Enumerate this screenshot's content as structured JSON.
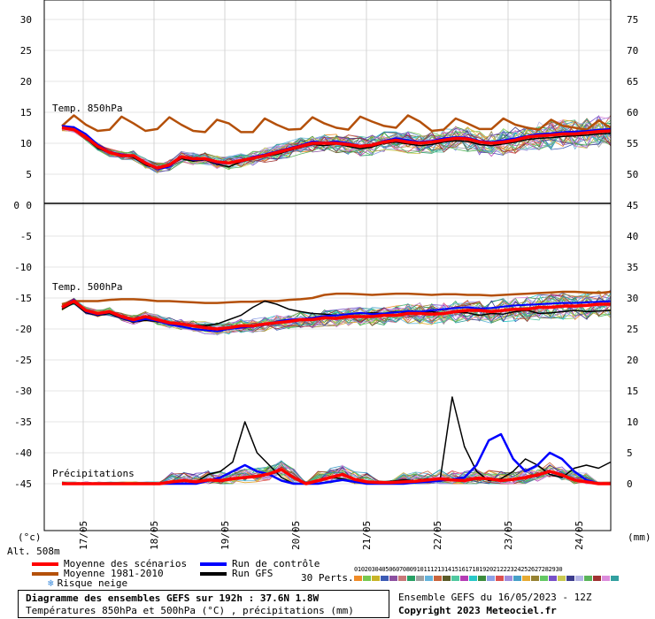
{
  "chart_data": {
    "type": "line",
    "title": "Diagramme des ensembles GEFS sur 192h : 37.6N 1.8W",
    "subtitle": "Températures 850hPa et 500hPa (°C) , précipitations (mm)",
    "x_dates": [
      "17/05",
      "18/05",
      "19/05",
      "20/05",
      "21/05",
      "22/05",
      "23/05",
      "24/05"
    ],
    "y_left_ticks": [
      30,
      25,
      20,
      15,
      10,
      5,
      0,
      -5,
      -10,
      -15,
      -20,
      -25,
      -30,
      -35,
      -40,
      -45
    ],
    "y_right_ticks_top": [
      75,
      70,
      65,
      60,
      55,
      50
    ],
    "y_right_ticks_bottom": [
      45,
      40,
      35,
      30,
      25,
      20,
      15,
      10,
      5,
      0
    ],
    "ylim_left": [
      -50,
      32
    ],
    "left_unit": "(°c)",
    "right_unit": "(mm)",
    "altitude": "Alt. 508m",
    "panel_labels": {
      "t850": "Temp. 850hPa",
      "t500": "Temp. 500hPa",
      "precip": "Précipitations"
    },
    "t850": {
      "mean": [
        12.5,
        12.2,
        11,
        9.5,
        8.5,
        8,
        8,
        6.8,
        6,
        6.5,
        7.8,
        7.5,
        7.5,
        7,
        6.8,
        7.2,
        7.6,
        8,
        8.5,
        9,
        9.5,
        10,
        10,
        10,
        9.8,
        9.5,
        9.7,
        10.2,
        10.5,
        10.2,
        10,
        10.2,
        10.5,
        10.8,
        10.7,
        10.2,
        10,
        10.2,
        10.5,
        11,
        11.2,
        11.3,
        11.5,
        11.5,
        11.7,
        11.9,
        12
      ],
      "climato": [
        12.8,
        14.5,
        13,
        12,
        12.2,
        14.3,
        13.2,
        12,
        12.3,
        14.2,
        13,
        12,
        11.8,
        13.8,
        13.2,
        11.8,
        11.8,
        14,
        13,
        12.2,
        12.3,
        14.2,
        13.2,
        12.5,
        12.2,
        14.3,
        13.5,
        12.8,
        12.5,
        14.5,
        13.5,
        12,
        12.2,
        14,
        13.2,
        12.3,
        12.3,
        14,
        13,
        12.5,
        12.2,
        13.8,
        12.8,
        12.5,
        12.2,
        13.7,
        12.5
      ],
      "control": [
        12.8,
        12.6,
        11.5,
        9.8,
        8.6,
        8.2,
        8,
        6.8,
        5.8,
        6.2,
        7.8,
        7.3,
        7.4,
        6.8,
        6.7,
        7.2,
        7.8,
        8.2,
        8.7,
        9.2,
        9.7,
        10.3,
        10.1,
        10.3,
        10,
        9.6,
        9.8,
        10.4,
        10.8,
        10.5,
        10.2,
        10.4,
        10.8,
        11,
        10.9,
        10.4,
        10.2,
        10.5,
        10.8,
        11.2,
        11.5,
        11.6,
        11.8,
        11.9,
        12,
        12.2,
        12.3
      ],
      "gfs": [
        12.8,
        12.4,
        10.8,
        9.2,
        8.4,
        8.1,
        7.7,
        6.5,
        5.9,
        6.4,
        7.5,
        7.1,
        7.3,
        6.6,
        6.2,
        7,
        7.5,
        7.9,
        8.2,
        8.8,
        9.3,
        9.8,
        9.6,
        9.9,
        9.5,
        9.1,
        9.4,
        10,
        10.2,
        9.9,
        9.6,
        9.8,
        10.2,
        10.4,
        10.3,
        9.8,
        9.6,
        9.9,
        10.2,
        10.6,
        10.8,
        10.9,
        11.1,
        11.2,
        11.3,
        11.5,
        11.6
      ]
    },
    "t500": {
      "mean": [
        -16.5,
        -15.5,
        -17,
        -17.5,
        -17.2,
        -18,
        -18.5,
        -18,
        -18.5,
        -19,
        -19.2,
        -19.5,
        -19.8,
        -20,
        -19.8,
        -19.5,
        -19.5,
        -19.2,
        -19,
        -18.8,
        -18.5,
        -18.5,
        -18.2,
        -18.3,
        -18,
        -18,
        -18,
        -17.8,
        -17.8,
        -17.5,
        -17.5,
        -17.6,
        -17.5,
        -17.2,
        -17,
        -17,
        -17.2,
        -17,
        -16.8,
        -16.8,
        -16.5,
        -16.5,
        -16.3,
        -16.3,
        -16.2,
        -16,
        -16
      ],
      "climato": [
        -16,
        -15.5,
        -15.5,
        -15.5,
        -15.3,
        -15.2,
        -15.2,
        -15.3,
        -15.5,
        -15.5,
        -15.6,
        -15.7,
        -15.8,
        -15.8,
        -15.7,
        -15.6,
        -15.6,
        -15.5,
        -15.5,
        -15.3,
        -15.2,
        -15,
        -14.5,
        -14.3,
        -14.3,
        -14.4,
        -14.5,
        -14.4,
        -14.3,
        -14.3,
        -14.4,
        -14.5,
        -14.4,
        -14.4,
        -14.5,
        -14.5,
        -14.6,
        -14.5,
        -14.4,
        -14.3,
        -14.2,
        -14.1,
        -14,
        -14,
        -14.1,
        -14.2,
        -14
      ],
      "control": [
        -16.5,
        -15.3,
        -17.2,
        -17.7,
        -17.3,
        -18.2,
        -18.8,
        -18.4,
        -18.7,
        -19.3,
        -19.6,
        -20,
        -20.2,
        -20.4,
        -20,
        -19.8,
        -19.6,
        -19.3,
        -18.8,
        -18.5,
        -18.4,
        -18.2,
        -17.9,
        -17.8,
        -17.6,
        -17.4,
        -17.6,
        -17.5,
        -17.3,
        -17.1,
        -17.2,
        -17,
        -16.8,
        -16.6,
        -16.5,
        -16.7,
        -16.6,
        -16.4,
        -16.2,
        -16.1,
        -16,
        -15.9,
        -15.8,
        -15.8,
        -15.7,
        -15.6,
        -15.5
      ],
      "gfs": [
        -16.8,
        -15.8,
        -17.4,
        -17.8,
        -17.5,
        -18.3,
        -18.9,
        -18.6,
        -18.8,
        -19.2,
        -19.3,
        -19.4,
        -19.5,
        -19.2,
        -18.5,
        -17.8,
        -16.5,
        -15.5,
        -16,
        -16.8,
        -17.2,
        -17.5,
        -17.6,
        -17.8,
        -17.6,
        -17.5,
        -17.4,
        -17.5,
        -17.2,
        -17.4,
        -17.3,
        -17.2,
        -17.5,
        -17.3,
        -17.4,
        -17.8,
        -17.5,
        -17.6,
        -17.2,
        -17,
        -17.5,
        -17.4,
        -17.2,
        -17,
        -17.2,
        -17.1,
        -17
      ]
    },
    "precip": {
      "mean": [
        0,
        0,
        0,
        0,
        0,
        0,
        0,
        0,
        0,
        0.3,
        0.5,
        0.3,
        0.6,
        0.5,
        0.8,
        1,
        1.2,
        1.6,
        2.3,
        1,
        0,
        0.5,
        1,
        1.5,
        0.7,
        0.3,
        0.2,
        0.2,
        0.3,
        0.4,
        0.6,
        0.8,
        0.6,
        0.5,
        0.9,
        0.8,
        0.5,
        0.7,
        1,
        1.4,
        2,
        1.4,
        0.6,
        0.3,
        0,
        0
      ],
      "control": [
        0,
        0,
        0,
        0,
        0,
        0,
        0,
        0,
        0,
        0,
        0,
        0,
        0.5,
        1,
        2,
        3,
        2,
        1.5,
        0.5,
        0,
        0,
        0,
        0.3,
        0.6,
        0.3,
        0,
        0,
        0,
        0,
        0.2,
        0.3,
        0.5,
        0.7,
        1,
        3,
        7,
        8,
        4,
        2,
        3,
        5,
        4,
        2,
        0.6,
        0,
        0
      ],
      "gfs": [
        0,
        0,
        0,
        0,
        0,
        0,
        0,
        0,
        0,
        0.2,
        0.4,
        0.3,
        1.5,
        2,
        3.5,
        10,
        5,
        3,
        1,
        0,
        0,
        0.5,
        1,
        0.8,
        0.3,
        0,
        0.2,
        0.4,
        0.6,
        0.5,
        0.8,
        0.5,
        14,
        6,
        2,
        0.5,
        0.8,
        2,
        4,
        3,
        1.5,
        1,
        2.5,
        3,
        2.5,
        3.5
      ]
    },
    "legend": {
      "mean": "Moyenne des scénarios",
      "climato": "Moyenne 1981-2010",
      "snow": "Risque neige",
      "control": "Run de contrôle",
      "gfs": "Run GFS",
      "perts": "30 Perts."
    },
    "perturbation_labels": [
      "01",
      "02",
      "03",
      "04",
      "05",
      "06",
      "07",
      "08",
      "09",
      "10",
      "11",
      "12",
      "13",
      "14",
      "15",
      "16",
      "17",
      "18",
      "19",
      "20",
      "21",
      "22",
      "23",
      "24",
      "25",
      "26",
      "27",
      "28",
      "29",
      "30"
    ],
    "colors": {
      "mean": "#ff0000",
      "climato": "#b4500a",
      "control": "#0000ff",
      "gfs": "#000000",
      "grid": "#808080",
      "perts": [
        "#f08c28",
        "#78c850",
        "#c8b428",
        "#3c5ab4",
        "#8c50a0",
        "#c87878",
        "#28a064",
        "#a0a0a0",
        "#64b4dc",
        "#c8643c",
        "#5a5a28",
        "#50c8a0",
        "#b43cb4",
        "#28c8c8",
        "#3c8c3c",
        "#8ca0e6",
        "#dc5050",
        "#a08cdc",
        "#46a0c8",
        "#e6aa32",
        "#968232",
        "#64c864",
        "#7850c8",
        "#c8c850",
        "#3c3c8c",
        "#b4b4e6",
        "#5ab45a",
        "#a03232",
        "#dc8cdc",
        "#32a0a0"
      ]
    },
    "ensemble_info": "Ensemble GEFS du 16/05/2023 - 12Z",
    "copyright": "Copyright 2023 Meteociel.fr"
  }
}
